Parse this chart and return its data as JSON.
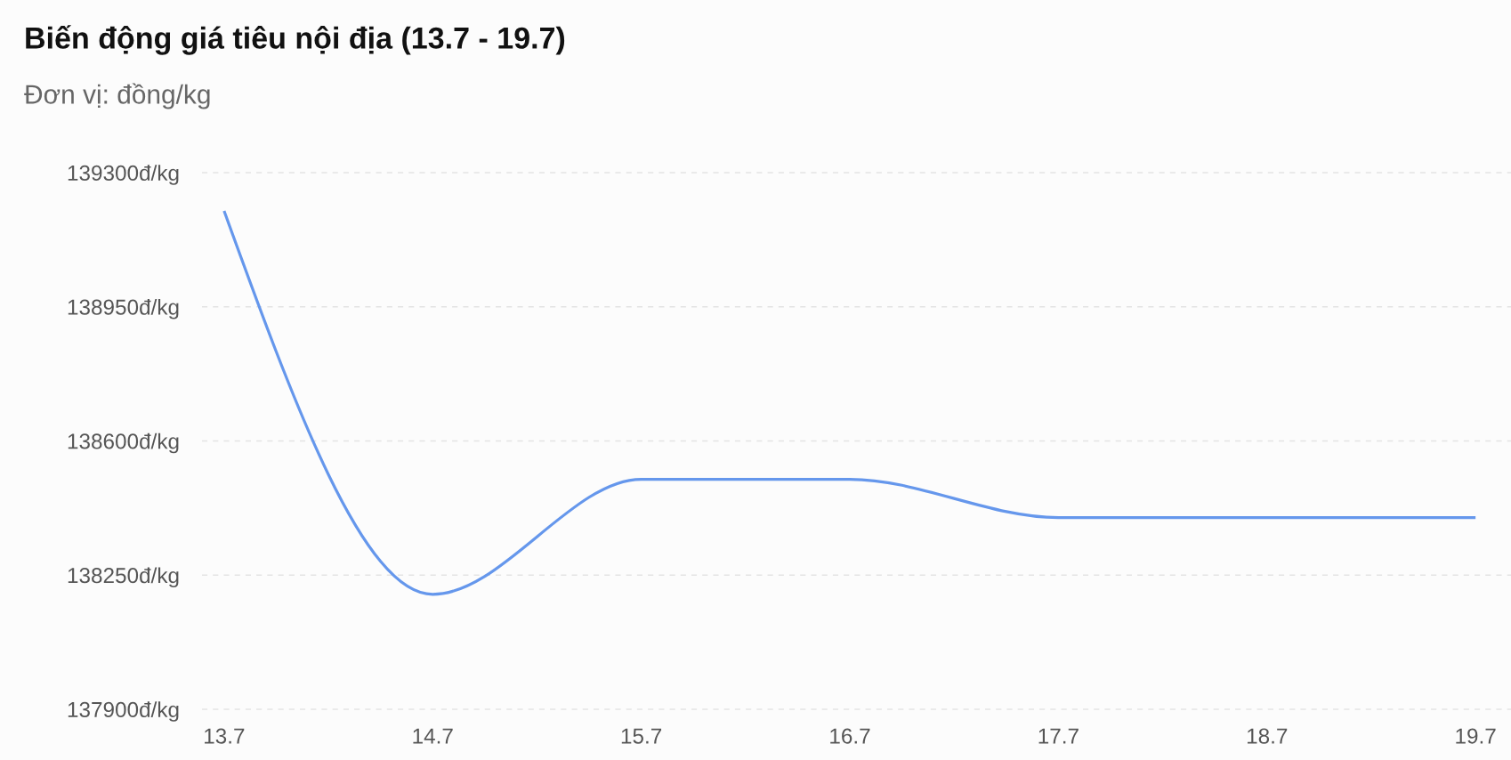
{
  "chart_data": {
    "type": "line",
    "title": "Biến động giá tiêu nội địa (13.7 - 19.7)",
    "subtitle": "Đơn vị: đồng/kg",
    "categories": [
      "13.7",
      "14.7",
      "15.7",
      "16.7",
      "17.7",
      "18.7",
      "19.7"
    ],
    "series": [
      {
        "color": "#6597ec",
        "values": [
          139200,
          138200,
          138500,
          138500,
          138400,
          138400,
          138400
        ]
      }
    ],
    "ylim": [
      137900,
      139300
    ],
    "yticks": [
      {
        "value": 137900,
        "label": "137900đ/kg"
      },
      {
        "value": 138250,
        "label": "138250đ/kg"
      },
      {
        "value": 138600,
        "label": "138600đ/kg"
      },
      {
        "value": 138950,
        "label": "138950đ/kg"
      },
      {
        "value": 139300,
        "label": "139300đ/kg"
      }
    ],
    "grid": "y",
    "line_style": "solid"
  }
}
